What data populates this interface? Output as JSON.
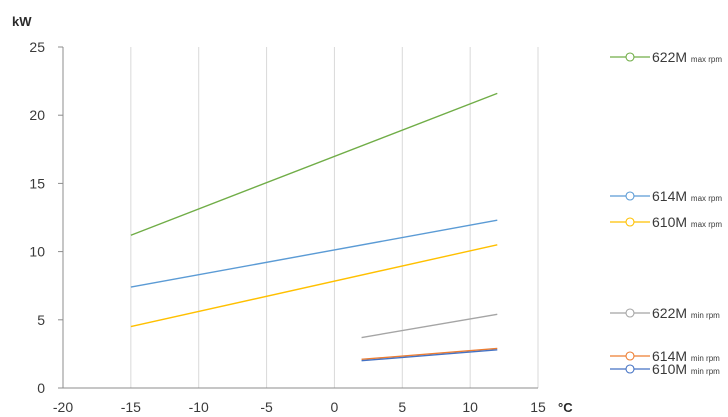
{
  "chart_data": {
    "type": "line",
    "title": "",
    "ylabel": "kW",
    "xlabel": "°C",
    "xlim": [
      -20,
      15
    ],
    "ylim": [
      0,
      25
    ],
    "x_ticks": [
      -20,
      -15,
      -10,
      -5,
      0,
      5,
      10,
      15
    ],
    "y_ticks": [
      0,
      5,
      10,
      15,
      20,
      25
    ],
    "grid": "vertical",
    "legend_position": "right",
    "series": [
      {
        "name": "622M",
        "suffix": "max rpm",
        "color": "#70ad47",
        "x": [
          -15,
          12
        ],
        "y": [
          11.2,
          21.6
        ]
      },
      {
        "name": "614M",
        "suffix": "max rpm",
        "color": "#5b9bd5",
        "x": [
          -15,
          12
        ],
        "y": [
          7.4,
          12.3
        ]
      },
      {
        "name": "610M",
        "suffix": "max rpm",
        "color": "#ffc000",
        "x": [
          -15,
          12
        ],
        "y": [
          4.5,
          10.5
        ]
      },
      {
        "name": "622M",
        "suffix": "min rpm",
        "color": "#a5a5a5",
        "x": [
          2,
          12
        ],
        "y": [
          3.7,
          5.4
        ]
      },
      {
        "name": "614M",
        "suffix": "min rpm",
        "color": "#ed7d31",
        "x": [
          2,
          12
        ],
        "y": [
          2.1,
          2.9
        ]
      },
      {
        "name": "610M",
        "suffix": "min rpm",
        "color": "#4472c4",
        "x": [
          2,
          12
        ],
        "y": [
          2.0,
          2.8
        ]
      }
    ]
  }
}
